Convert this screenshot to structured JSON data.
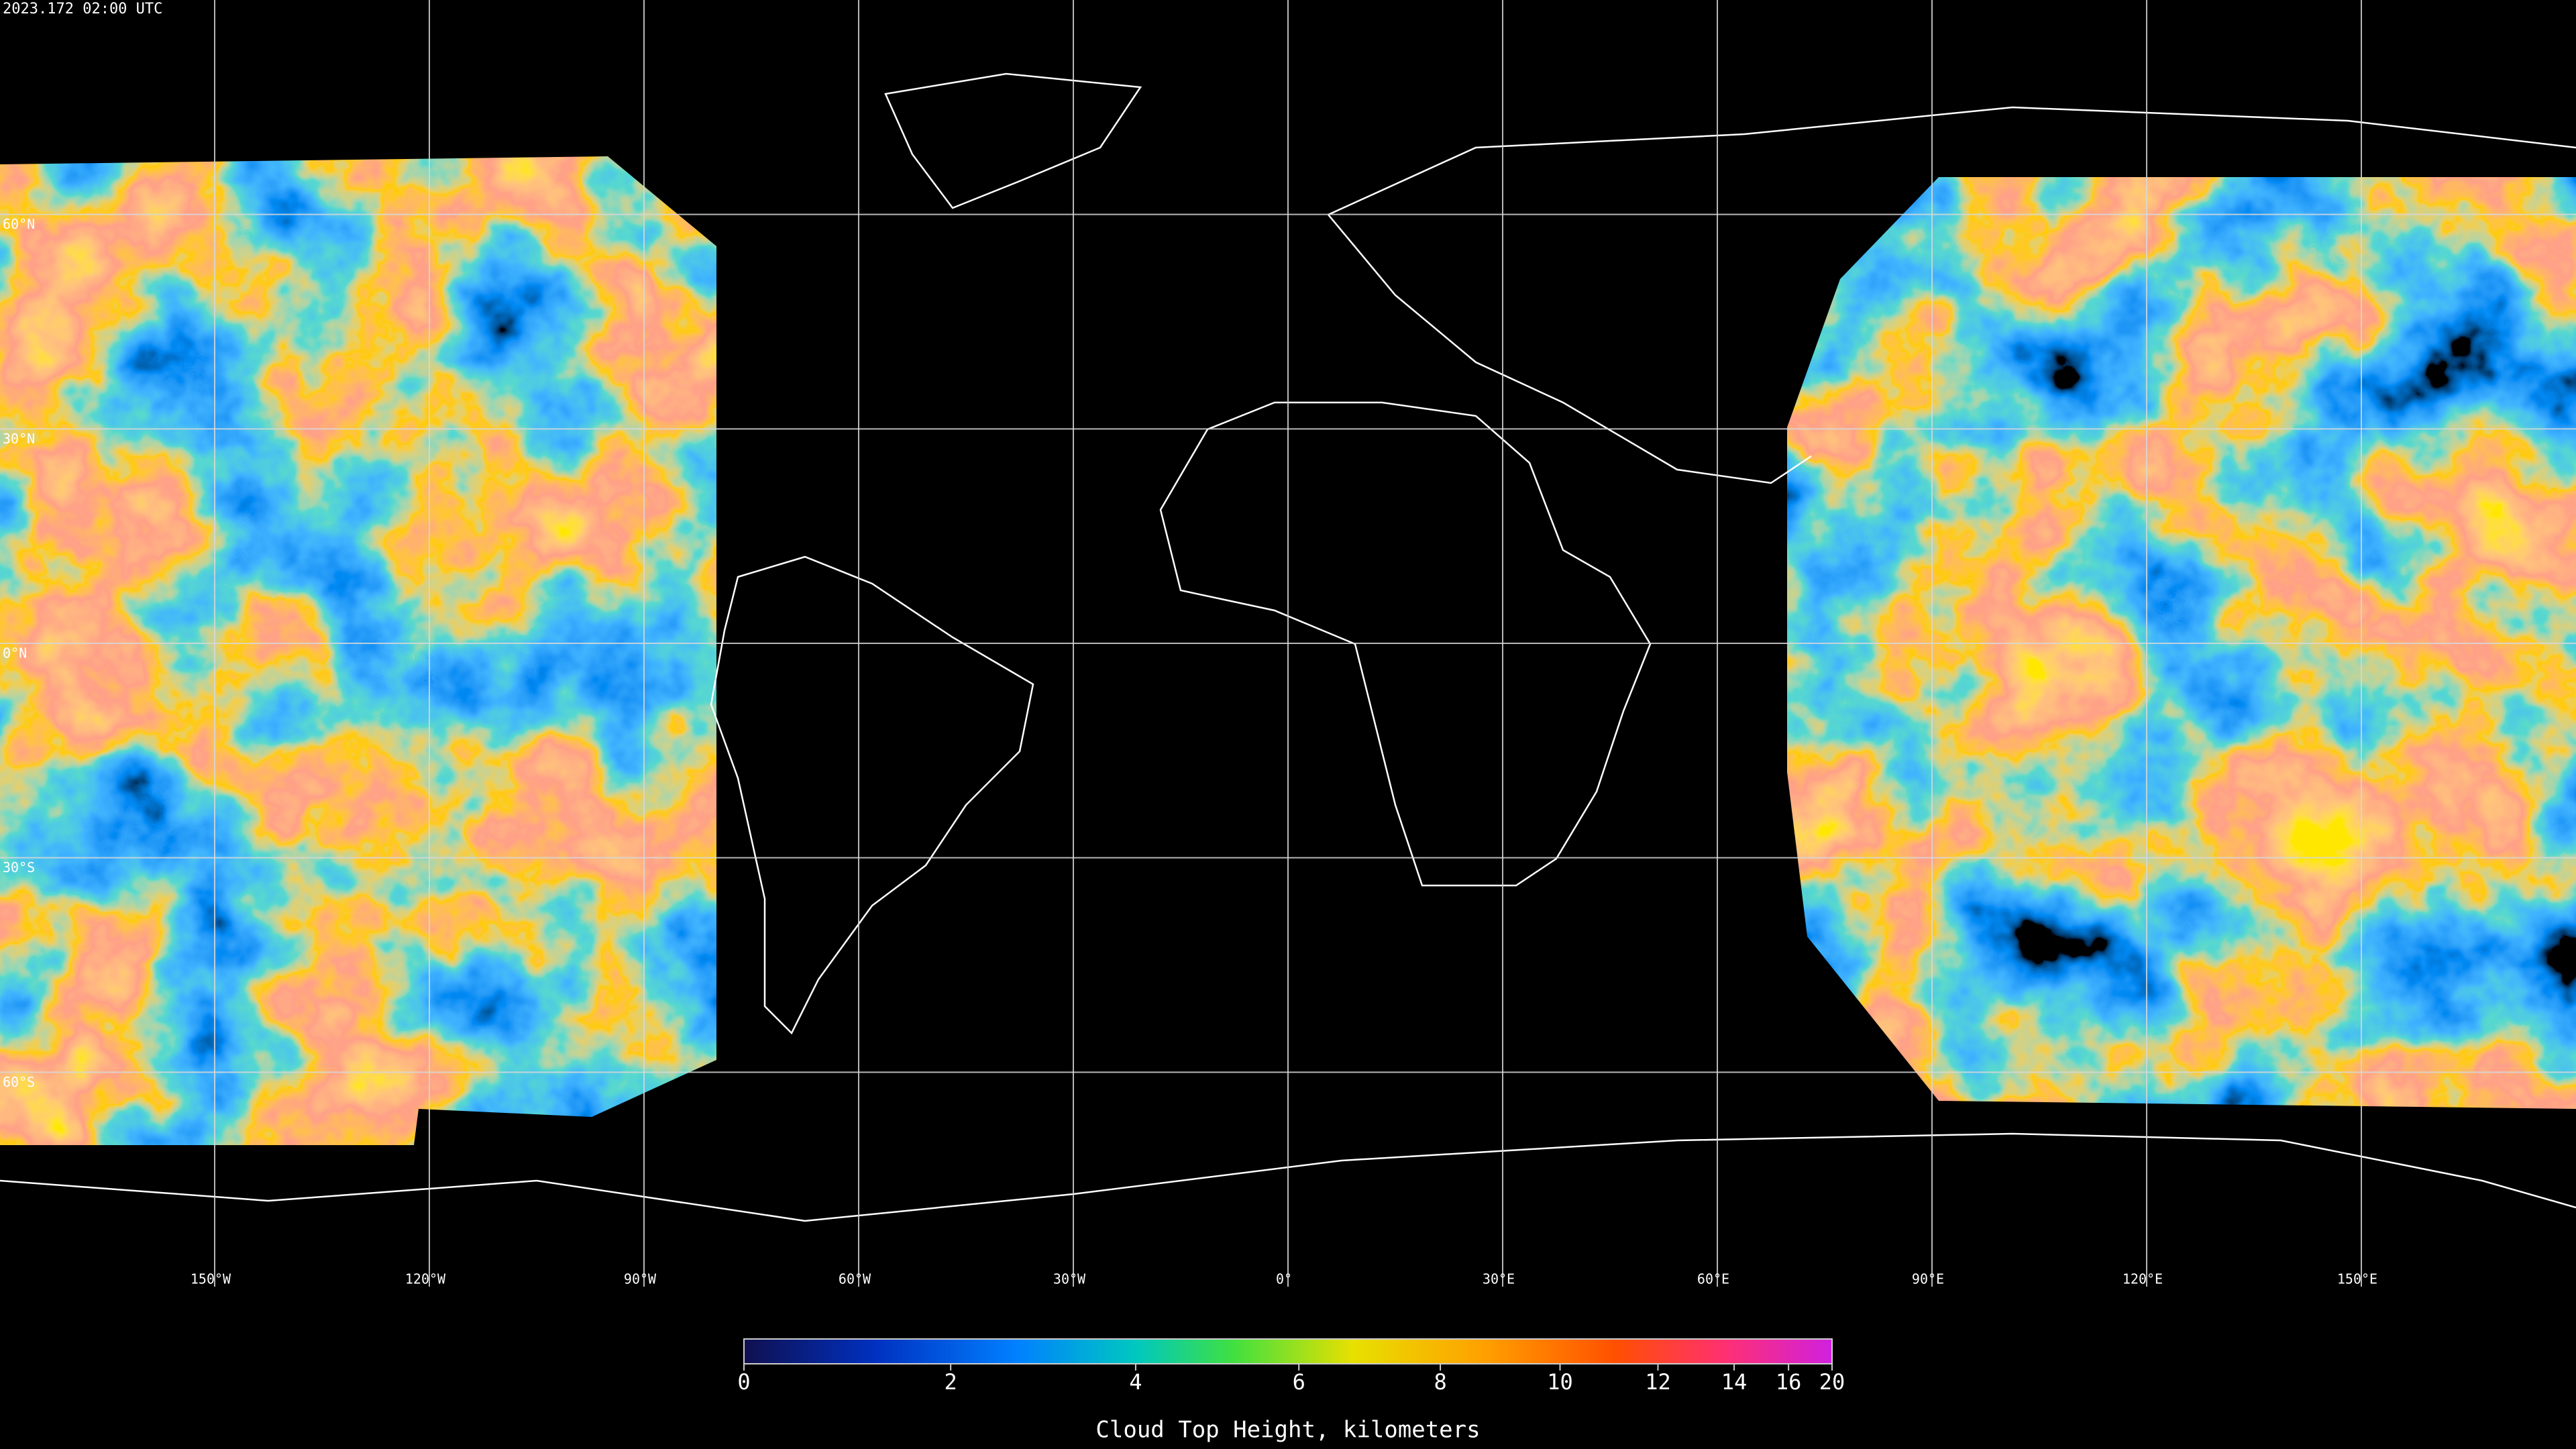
{
  "timestamp": "2023.172 02:00 UTC",
  "map": {
    "xlim": [
      -180,
      180
    ],
    "ylim": [
      -90,
      90
    ],
    "grid": true,
    "xticks": [
      {
        "value": -150,
        "label": "150°W"
      },
      {
        "value": -120,
        "label": "120°W"
      },
      {
        "value": -90,
        "label": "90°W"
      },
      {
        "value": -60,
        "label": "60°W"
      },
      {
        "value": -30,
        "label": "30°W"
      },
      {
        "value": 0,
        "label": "0°"
      },
      {
        "value": 30,
        "label": "30°E"
      },
      {
        "value": 60,
        "label": "60°E"
      },
      {
        "value": 90,
        "label": "90°E"
      },
      {
        "value": 120,
        "label": "120°E"
      },
      {
        "value": 150,
        "label": "150°E"
      }
    ],
    "yticks": [
      {
        "value": 60,
        "label": "60°N"
      },
      {
        "value": 30,
        "label": "30°N"
      },
      {
        "value": 0,
        "label": "0°N"
      },
      {
        "value": -30,
        "label": "30°S"
      },
      {
        "value": -60,
        "label": "60°S"
      }
    ]
  },
  "colorbar": {
    "title": "Cloud Top Height, kilometers",
    "range": [
      0,
      20
    ],
    "ticks": [
      0,
      2,
      4,
      6,
      8,
      10,
      12,
      14,
      16,
      20
    ]
  }
}
